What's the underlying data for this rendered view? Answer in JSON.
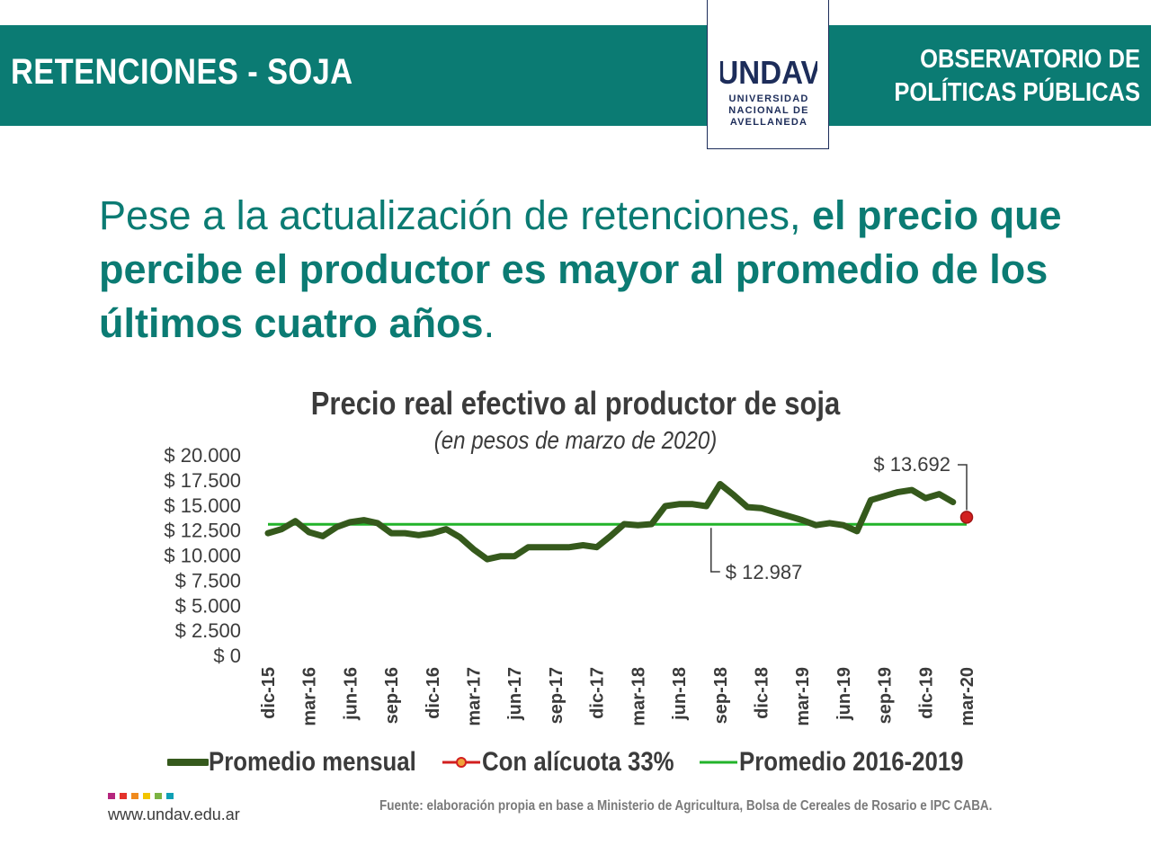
{
  "header": {
    "section_title": "RETENCIONES - SOJA",
    "observatorio_line1": "OBSERVATORIO DE",
    "observatorio_line2": "POLÍTICAS PÚBLICAS",
    "logo_mark": "UNDAV",
    "logo_line1": "UNIVERSIDAD",
    "logo_line2": "NACIONAL DE",
    "logo_line3": "AVELLANEDA",
    "background_color": "#0b7b73"
  },
  "headline": {
    "normal": "Pese a la actualización de retenciones, ",
    "bold": "el precio que percibe el productor es mayor al promedio de los últimos cuatro años",
    "end": "."
  },
  "chart_data": {
    "type": "line",
    "title": "Precio real efectivo al productor de soja",
    "subtitle": "(en pesos de marzo de 2020)",
    "xlabel": "",
    "ylabel": "",
    "ylim": [
      0,
      20000
    ],
    "y_ticks": [
      "$ 20.000",
      "$ 17.500",
      "$ 15.000",
      "$ 12.500",
      "$ 10.000",
      "$ 7.500",
      "$ 5.000",
      "$ 2.500",
      "$ 0"
    ],
    "y_tick_values": [
      20000,
      17500,
      15000,
      12500,
      10000,
      7500,
      5000,
      2500,
      0
    ],
    "x_tick_labels": [
      "dic-15",
      "mar-16",
      "jun-16",
      "sep-16",
      "dic-16",
      "mar-17",
      "jun-17",
      "sep-17",
      "dic-17",
      "mar-18",
      "jun-18",
      "sep-18",
      "dic-18",
      "mar-19",
      "jun-19",
      "sep-19",
      "dic-19",
      "mar-20"
    ],
    "x": [
      "dic-15",
      "ene-16",
      "feb-16",
      "mar-16",
      "abr-16",
      "may-16",
      "jun-16",
      "jul-16",
      "ago-16",
      "sep-16",
      "oct-16",
      "nov-16",
      "dic-16",
      "ene-17",
      "feb-17",
      "mar-17",
      "abr-17",
      "may-17",
      "jun-17",
      "jul-17",
      "ago-17",
      "sep-17",
      "oct-17",
      "nov-17",
      "dic-17",
      "ene-18",
      "feb-18",
      "mar-18",
      "abr-18",
      "may-18",
      "jun-18",
      "jul-18",
      "ago-18",
      "sep-18",
      "oct-18",
      "nov-18",
      "dic-18",
      "ene-19",
      "feb-19",
      "mar-19",
      "abr-19",
      "may-19",
      "jun-19",
      "jul-19",
      "ago-19",
      "sep-19",
      "oct-19",
      "nov-19",
      "dic-19",
      "ene-20",
      "feb-20",
      "mar-20"
    ],
    "series": [
      {
        "name": "Promedio mensual",
        "color": "#35591c",
        "values": [
          12100,
          12500,
          13300,
          12200,
          11800,
          12700,
          13200,
          13400,
          13100,
          12100,
          12100,
          11900,
          12100,
          12500,
          11700,
          10500,
          9500,
          9800,
          9800,
          10700,
          10700,
          10700,
          10700,
          10900,
          10700,
          11800,
          13000,
          12900,
          13000,
          14800,
          15000,
          15000,
          14800,
          17000,
          15900,
          14700,
          14600,
          14200,
          13800,
          13400,
          12900,
          13100,
          12900,
          12300,
          15400,
          15800,
          16200,
          16400,
          15600,
          16000,
          15200,
          null
        ]
      },
      {
        "name": "Con alícuota 33%",
        "color": "#d21f1f",
        "values": [
          null,
          null,
          null,
          null,
          null,
          null,
          null,
          null,
          null,
          null,
          null,
          null,
          null,
          null,
          null,
          null,
          null,
          null,
          null,
          null,
          null,
          null,
          null,
          null,
          null,
          null,
          null,
          null,
          null,
          null,
          null,
          null,
          null,
          null,
          null,
          null,
          null,
          null,
          null,
          null,
          null,
          null,
          null,
          null,
          null,
          null,
          null,
          null,
          null,
          null,
          null,
          13692
        ]
      },
      {
        "name": "Promedio 2016-2019",
        "color": "#22b32a",
        "value": 12987
      }
    ],
    "annotations": [
      {
        "text": "$ 13.692",
        "target": "mar-20",
        "value": 13692
      },
      {
        "text": "$ 12.987",
        "target": "sep-18",
        "value": 12987
      }
    ],
    "grid": false,
    "legend_position": "bottom"
  },
  "footer": {
    "url": "www.undav.edu.ar",
    "source": "Fuente: elaboración propia en base a Ministerio de Agricultura, Bolsa de Cereales de Rosario e IPC CABA.",
    "dot_colors": [
      "#b5267e",
      "#e4322b",
      "#f08a1d",
      "#f2c500",
      "#7cb342",
      "#0fa0b5"
    ]
  }
}
